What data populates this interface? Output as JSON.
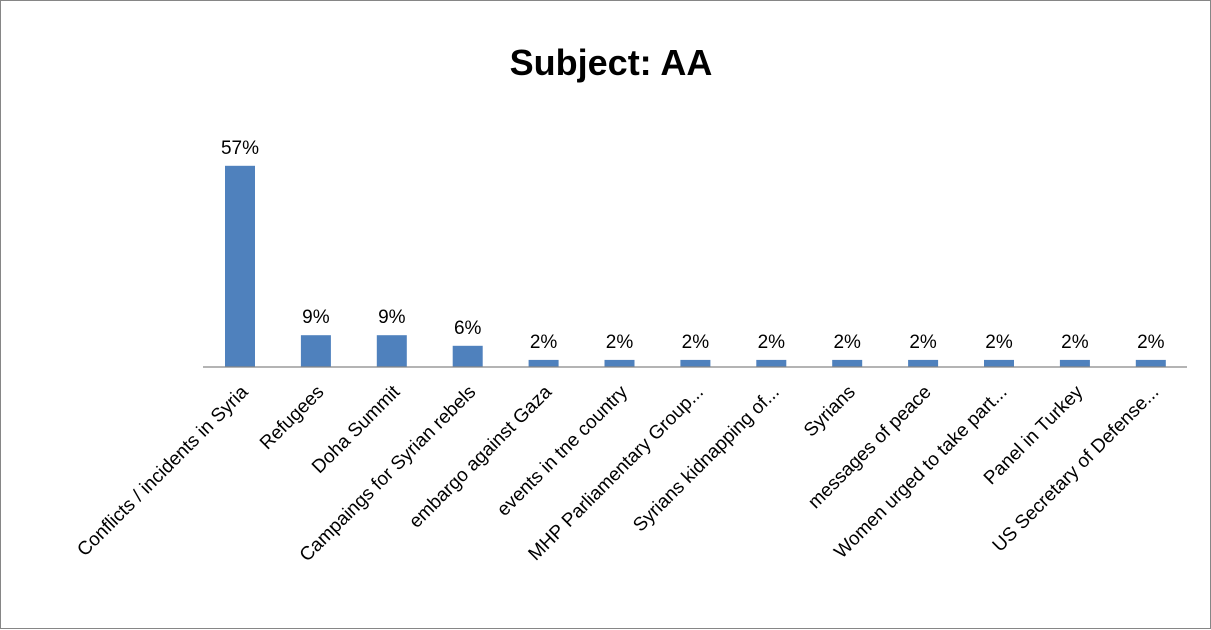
{
  "chart_data": {
    "type": "bar",
    "title": "Subject: AA",
    "xlabel": "",
    "ylabel": "",
    "ylim": [
      0,
      0.6
    ],
    "grid": false,
    "legend": "none",
    "bar_color": "#4f81bd",
    "categories": [
      "Conflicts / incidents in Syria",
      "Refugees",
      "Doha Summit",
      "Campaings for Syrian rebels",
      "embargo against Gaza",
      "events in tne country",
      "MHP Parliamentary Group...",
      "Syrians kidnapping of...",
      "Syrians",
      "messages of peace",
      "Women urged to take part...",
      "Panel in Turkey",
      "US Secretary of Defense..."
    ],
    "values": [
      0.57,
      0.09,
      0.09,
      0.06,
      0.02,
      0.02,
      0.02,
      0.02,
      0.02,
      0.02,
      0.02,
      0.02,
      0.02
    ],
    "data_labels": [
      "57%",
      "9%",
      "9%",
      "6%",
      "2%",
      "2%",
      "2%",
      "2%",
      "2%",
      "2%",
      "2%",
      "2%",
      "2%"
    ]
  }
}
